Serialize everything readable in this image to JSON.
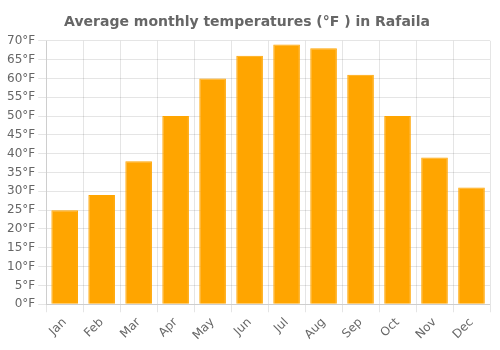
{
  "chart_data": {
    "type": "bar",
    "title": "Average monthly temperatures (°F ) in Rafaila",
    "categories": [
      "Jan",
      "Feb",
      "Mar",
      "Apr",
      "May",
      "Jun",
      "Jul",
      "Aug",
      "Sep",
      "Oct",
      "Nov",
      "Dec"
    ],
    "values": [
      25,
      29,
      38,
      50,
      60,
      66,
      69,
      68,
      61,
      50,
      39,
      31
    ],
    "color": "#FFA500",
    "ylim": [
      0,
      70
    ],
    "yticks": [
      {
        "value": 0,
        "label": "0°F"
      },
      {
        "value": 5,
        "label": "5°F"
      },
      {
        "value": 10,
        "label": "10°F"
      },
      {
        "value": 15,
        "label": "15°F"
      },
      {
        "value": 20,
        "label": "20°F"
      },
      {
        "value": 25,
        "label": "25°F"
      },
      {
        "value": 30,
        "label": "30°F"
      },
      {
        "value": 35,
        "label": "35°F"
      },
      {
        "value": 40,
        "label": "40°F"
      },
      {
        "value": 45,
        "label": "45°F"
      },
      {
        "value": 50,
        "label": "50°F"
      },
      {
        "value": 55,
        "label": "55°F"
      },
      {
        "value": 60,
        "label": "60°F"
      },
      {
        "value": 65,
        "label": "65°F"
      },
      {
        "value": 70,
        "label": "70°F"
      }
    ],
    "grid": true
  }
}
